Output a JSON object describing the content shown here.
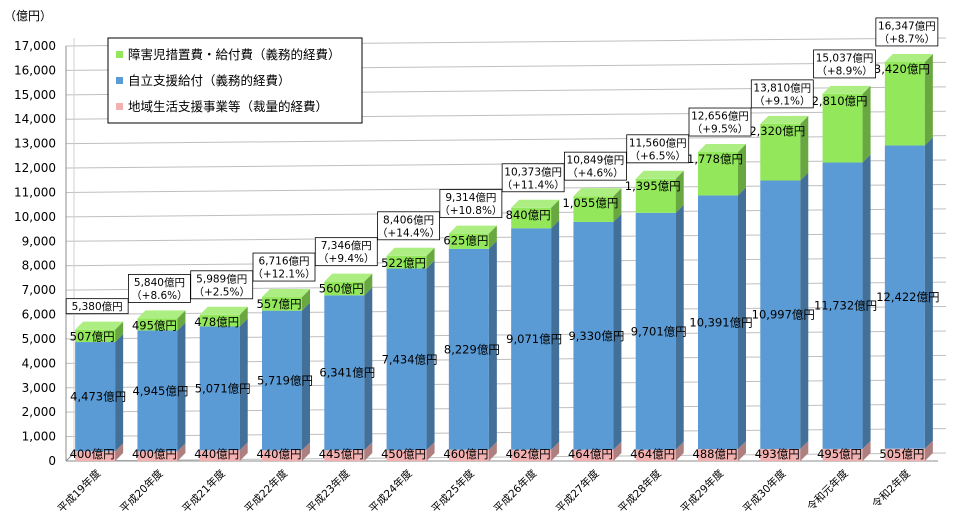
{
  "chart_data": {
    "type": "bar",
    "stacked": true,
    "ylabel": "（億円）",
    "ylim": [
      0,
      17000
    ],
    "ytick_step": 1000,
    "grid": true,
    "legend_position": "top-left",
    "categories": [
      "平成19年度",
      "平成20年度",
      "平成21年度",
      "平成22年度",
      "平成23年度",
      "平成24年度",
      "平成25年度",
      "平成26年度",
      "平成27年度",
      "平成28年度",
      "平成29年度",
      "平成30年度",
      "令和元年度",
      "令和2年度"
    ],
    "series": [
      {
        "name": "地域生活支援事業等（裁量的経費）",
        "color": "#f2b0b0",
        "values": [
          400,
          400,
          440,
          440,
          445,
          450,
          460,
          462,
          464,
          464,
          488,
          493,
          495,
          505
        ],
        "labels": [
          "400億円",
          "400億円",
          "440億円",
          "440億円",
          "445億円",
          "450億円",
          "460億円",
          "462億円",
          "464億円",
          "464億円",
          "488億円",
          "493億円",
          "495億円",
          "505億円"
        ]
      },
      {
        "name": "自立支援給付（義務的経費）",
        "color": "#5b9bd5",
        "values": [
          4473,
          4945,
          5071,
          5719,
          6341,
          7434,
          8229,
          9071,
          9330,
          9701,
          10391,
          10997,
          11732,
          12422
        ],
        "labels": [
          "4,473億円",
          "4,945億円",
          "5,071億円",
          "5,719億円",
          "6,341億円",
          "7,434億円",
          "8,229億円",
          "9,071億円",
          "9,330億円",
          "9,701億円",
          "10,391億円",
          "10,997億円",
          "11,732億円",
          "12,422億円"
        ]
      },
      {
        "name": "障害児措置費・給付費（義務的経費）",
        "color": "#92e85a",
        "values": [
          507,
          495,
          478,
          557,
          560,
          522,
          625,
          840,
          1055,
          1395,
          1778,
          2320,
          2810,
          3420
        ],
        "labels": [
          "507億円",
          "495億円",
          "478億円",
          "557億円",
          "560億円",
          "522億円",
          "625億円",
          "840億円",
          "1,055億円",
          "1,395億円",
          "1,778億円",
          "2,320億円",
          "2,810億円",
          "3,420億円"
        ]
      }
    ],
    "totals": [
      {
        "value": 5380,
        "label": "5,380億円",
        "change": ""
      },
      {
        "value": 5840,
        "label": "5,840億円",
        "change": "（+8.6%）"
      },
      {
        "value": 5989,
        "label": "5,989億円",
        "change": "（+2.5%）"
      },
      {
        "value": 6716,
        "label": "6,716億円",
        "change": "（+12.1%）"
      },
      {
        "value": 7346,
        "label": "7,346億円",
        "change": "（+9.4%）"
      },
      {
        "value": 8406,
        "label": "8,406億円",
        "change": "（+14.4%）"
      },
      {
        "value": 9314,
        "label": "9,314億円",
        "change": "（+10.8%）"
      },
      {
        "value": 10373,
        "label": "10,373億円",
        "change": "（+11.4%）"
      },
      {
        "value": 10849,
        "label": "10,849億円",
        "change": "（+4.6%）"
      },
      {
        "value": 11560,
        "label": "11,560億円",
        "change": "（+6.5%）"
      },
      {
        "value": 12656,
        "label": "12,656億円",
        "change": "（+9.5%）"
      },
      {
        "value": 13810,
        "label": "13,810億円",
        "change": "（+9.1%）"
      },
      {
        "value": 15037,
        "label": "15,037億円",
        "change": "（+8.9%）"
      },
      {
        "value": 16347,
        "label": "16,347億円",
        "change": "（+8.7%）"
      }
    ],
    "legend": [
      {
        "label": "障害児措置費・給付費（義務的経費）",
        "color": "#92e85a"
      },
      {
        "label": "自立支援給付（義務的経費）",
        "color": "#5b9bd5"
      },
      {
        "label": "地域生活支援事業等（裁量的経費）",
        "color": "#f2b0b0"
      }
    ]
  }
}
